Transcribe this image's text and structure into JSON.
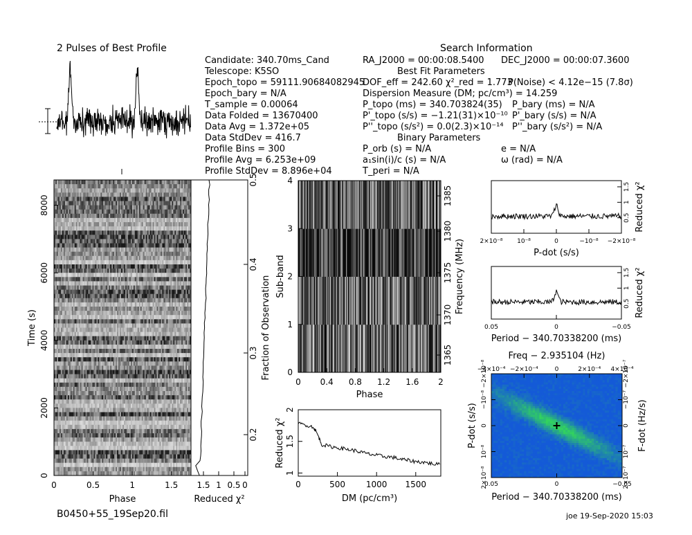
{
  "header": {
    "pulses_title": "2 Pulses of Best Profile",
    "search_title": "Search Information",
    "best_fit_title": "Best Fit Parameters",
    "binary_title": "Binary Parameters",
    "filename": "B0450+55_19Sep20.fil",
    "footer_user": "joe 19-Sep-2020 15:03"
  },
  "info_left": [
    "Candidate:  340.70ms_Cand",
    "Telescope:  K5SO",
    "Epoch_topo = 59111.90684082945",
    "Epoch_bary = N/A",
    "T_sample        =  0.00064",
    "Data Folded    =  13670400",
    "Data Avg         =  1.372e+05",
    "Data StdDev    =  416.7",
    "Profile Bins    =  300",
    "Profile Avg      =  6.253e+09",
    "Profile StdDev  =  8.896e+04"
  ],
  "info_mid": [
    "RA_J2000 = 00:00:08.5400",
    "DOF_eff = 242.60  χ²_red = 1.773",
    "Dispersion Measure (DM; pc/cm³) = 14.259",
    "P_topo (ms) =  340.703824(35)",
    "P'_topo (s/s) = −1.21(31)×10⁻¹⁰",
    "P''_topo (s/s²) = 0.0(2.3)×10⁻¹⁴",
    "P_orb (s) = N/A",
    "a₁sin(i)/c (s) = N/A",
    "T_peri = N/A"
  ],
  "info_right": [
    "DEC_J2000 = 00:00:07.3600",
    "P(Noise) < 4.12e−15   (7.8σ)",
    "P_bary (ms) = N/A",
    "P'_bary (s/s) = N/A",
    "P''_bary (s/s²) = N/A",
    "e = N/A",
    "ω (rad) = N/A"
  ],
  "colors": {
    "ink": "#000000",
    "pdot_bg": "#1f6fd6",
    "pdot_hot": "#22c35a"
  },
  "chart_data": [
    {
      "type": "line",
      "name": "profile",
      "title": "2 Pulses of Best Profile",
      "x": "phase 0-2",
      "peaks_phase": [
        0.2,
        1.2
      ],
      "grid": false
    },
    {
      "type": "heatmap",
      "name": "time-phase",
      "xlabel": "Phase",
      "ylabel": "Time (s)",
      "xticks": [
        "0",
        "0.5",
        "1",
        "1.5"
      ],
      "yticks": [
        "0",
        "2000",
        "4000",
        "6000",
        "8000"
      ],
      "xlim": [
        0,
        2
      ],
      "ylim": [
        0,
        8750
      ]
    },
    {
      "type": "line",
      "name": "time-redchi",
      "xlabel": "Reduced χ²",
      "ylabel": "Fraction of Observation",
      "xticks": [
        "1.5",
        "1",
        "0.5",
        "0"
      ],
      "yticks": [
        "0.2",
        "0.3",
        "0.4",
        "0.5"
      ]
    },
    {
      "type": "heatmap",
      "name": "subband-phase",
      "xlabel": "Phase",
      "ylabel": "Sub-band",
      "ylabel2": "Frequency (MHz)",
      "xticks": [
        "0",
        "0.4",
        "0.8",
        "1.2",
        "1.6",
        "2"
      ],
      "yticks": [
        "0",
        "1",
        "2",
        "3",
        "4"
      ],
      "yticks2": [
        "1365",
        "1370",
        "1375",
        "1380",
        "1385"
      ]
    },
    {
      "type": "line",
      "name": "dm-redchi",
      "xlabel": "DM (pc/cm³)",
      "ylabel": "Reduced χ²",
      "xticks": [
        "0",
        "500",
        "1000",
        "1500"
      ],
      "yticks": [
        "1",
        "1.5",
        "2"
      ],
      "xlim": [
        0,
        1820
      ],
      "ylim": [
        0.95,
        2.0
      ],
      "x": [
        0,
        100,
        200,
        250,
        300,
        400,
        500,
        600,
        700,
        800,
        900,
        1000,
        1100,
        1200,
        1300,
        1400,
        1500,
        1600,
        1700,
        1820
      ],
      "values": [
        1.78,
        1.76,
        1.72,
        1.6,
        1.45,
        1.42,
        1.4,
        1.38,
        1.36,
        1.33,
        1.3,
        1.28,
        1.26,
        1.25,
        1.22,
        1.2,
        1.18,
        1.17,
        1.15,
        1.13
      ]
    },
    {
      "type": "line",
      "name": "pdot-redchi",
      "xlabel": "P-dot (s/s)",
      "ylabel": "Reduced χ²",
      "xticks": [
        "2×10⁻⁸",
        "10⁻⁸",
        "0",
        "−10⁻⁸",
        "−2×10⁻⁸"
      ],
      "yticks": [
        "0.5",
        "1",
        "1.5"
      ]
    },
    {
      "type": "line",
      "name": "period-redchi",
      "xlabel": "Period − 340.70338200 (ms)",
      "ylabel": "Reduced χ²",
      "xticks": [
        "0.05",
        "0",
        "−0.05"
      ],
      "yticks": [
        "0.5",
        "1",
        "1.5"
      ]
    },
    {
      "type": "heatmap",
      "name": "period-pdot",
      "title": "Freq − 2.935104 (Hz)",
      "xlabel": "Period − 340.70338200 (ms)",
      "ylabel": "P-dot (s/s)",
      "ylabel2": "F-dot (Hz/s)",
      "xticks": [
        "0.05",
        "0",
        "−0.05"
      ],
      "xticks_top": [
        "−4×10⁻⁴",
        "−2×10⁻⁴",
        "0",
        "2×10⁻⁴",
        "4×10⁻⁴"
      ],
      "yticks": [
        "2×10⁻⁸",
        "10⁻⁸",
        "0",
        "−10⁻⁸",
        "−2×10⁻⁸"
      ],
      "yticks2": [
        "2×10⁻⁷",
        "10⁻⁷",
        "0",
        "−10⁻⁷",
        "−2×10⁻⁷"
      ]
    }
  ]
}
